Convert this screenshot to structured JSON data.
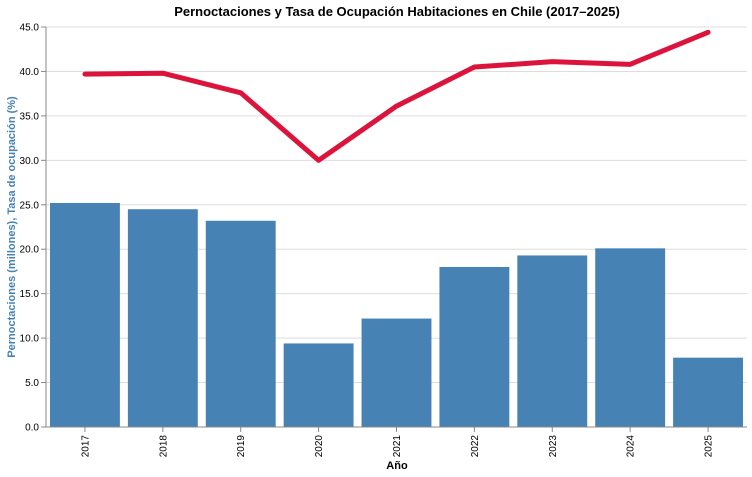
{
  "chart_data": {
    "type": "bar",
    "title": "Pernoctaciones y Tasa de Ocupación Habitaciones en Chile (2017–2025)",
    "xlabel": "Año",
    "ylabel": "Pernoctaciones (millones), Tasa de ocupación (%)",
    "categories": [
      "2017",
      "2018",
      "2019",
      "2020",
      "2021",
      "2022",
      "2023",
      "2024",
      "2025"
    ],
    "ylim": [
      0,
      45
    ],
    "yticks": [
      "0.0",
      "5.0",
      "10.0",
      "15.0",
      "20.0",
      "25.0",
      "30.0",
      "35.0",
      "40.0",
      "45.0"
    ],
    "grid": true,
    "series": [
      {
        "type": "bar",
        "color": "#4682b4",
        "values": [
          25.2,
          24.5,
          23.2,
          9.4,
          12.2,
          18.0,
          19.3,
          20.1,
          7.8
        ]
      },
      {
        "type": "line",
        "color": "#dc143c",
        "values": [
          39.7,
          39.8,
          37.6,
          30.0,
          36.1,
          40.5,
          41.1,
          40.8,
          44.4
        ]
      }
    ],
    "colors": {
      "ylabel": "#4682b4",
      "grid": "#dddddd",
      "axis": "#888888"
    }
  }
}
